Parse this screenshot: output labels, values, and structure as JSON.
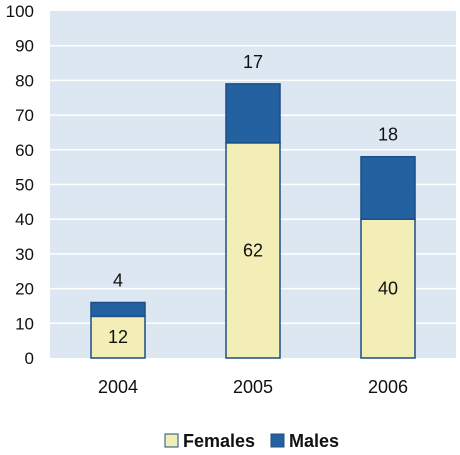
{
  "chart_data": {
    "type": "bar",
    "stacked": true,
    "categories": [
      "2004",
      "2005",
      "2006"
    ],
    "series": [
      {
        "name": "Females",
        "values": [
          12,
          62,
          40
        ],
        "color": "#f2eeb6"
      },
      {
        "name": "Males",
        "values": [
          4,
          17,
          18
        ],
        "color": "#2461a0"
      }
    ],
    "ylim": [
      0,
      100
    ],
    "yticks": [
      "0",
      "10",
      "20",
      "30",
      "40",
      "50",
      "60",
      "70",
      "80",
      "90",
      "100"
    ],
    "grid": true,
    "legend_position": "bottom",
    "colors": {
      "plot_background": "#dce7f2",
      "gridline": "#ffffff",
      "bar_outline": "#1b4f86"
    }
  }
}
